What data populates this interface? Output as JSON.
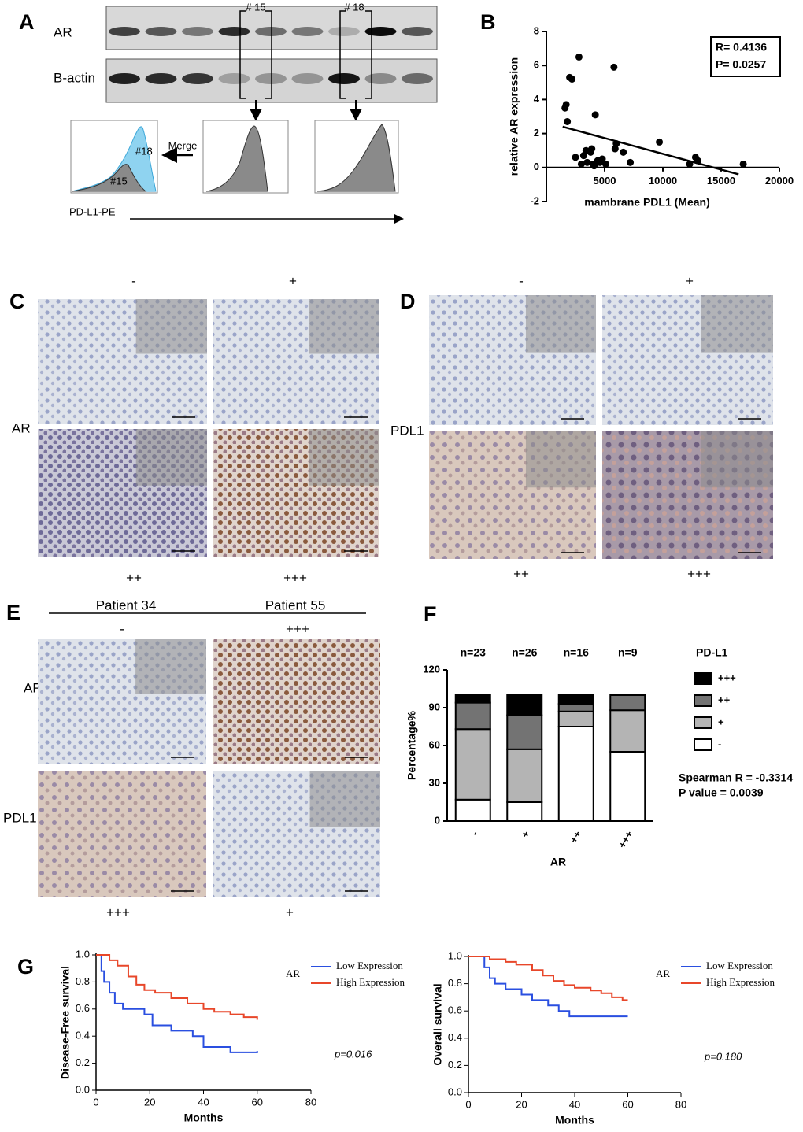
{
  "panels": {
    "A": {
      "letter": "A",
      "labels": [
        "AR",
        "B-actin"
      ],
      "lanes": [
        "# 15",
        "# 18"
      ],
      "merge": "Merge",
      "gates": [
        "#18",
        "#15"
      ],
      "axis": "PD-L1-PE"
    },
    "C": {
      "letter": "C",
      "columns": [
        "-",
        "+"
      ],
      "row": "AR",
      "bottom": [
        "++",
        "+++"
      ]
    },
    "D": {
      "letter": "D",
      "columns": [
        "-",
        "+"
      ],
      "row": "PDL1",
      "bottom": [
        "++",
        "+++"
      ]
    },
    "E": {
      "letter": "E",
      "patients": [
        "Patient 34",
        "Patient 55"
      ],
      "top": [
        "-",
        "+++"
      ],
      "rows": [
        "AR",
        "PDL1"
      ],
      "bottom": [
        "+++",
        "+"
      ]
    }
  },
  "chart_data": [
    {
      "type": "scatter",
      "letter": "B",
      "color": "#000000",
      "x": [
        1600,
        1700,
        1800,
        2000,
        2200,
        2500,
        2800,
        3000,
        3200,
        3400,
        3500,
        3800,
        3900,
        4000,
        4100,
        4200,
        4400,
        4600,
        4800,
        5100,
        5800,
        5900,
        6000,
        6600,
        7200,
        9700,
        12300,
        12800,
        13000,
        16900
      ],
      "values": [
        3.5,
        3.7,
        2.7,
        5.3,
        5.2,
        0.6,
        6.5,
        0.2,
        0.7,
        1.0,
        0.3,
        0.9,
        1.1,
        0.2,
        0.1,
        3.1,
        0.4,
        0.3,
        0.5,
        0.2,
        5.9,
        1.1,
        1.4,
        0.9,
        0.3,
        1.5,
        0.2,
        0.6,
        0.4,
        0.2
      ],
      "trend": {
        "x": [
          1400,
          16500
        ],
        "values": [
          2.4,
          -0.4
        ]
      },
      "xlabel": "mambrane PDL1 (Mean)",
      "ylabel": "relative AR expression",
      "xlim": [
        0,
        20000
      ],
      "ylim": [
        -2,
        8
      ],
      "xticks": [
        5000,
        10000,
        15000,
        20000
      ],
      "yticks": [
        -2,
        0,
        2,
        4,
        6,
        8
      ],
      "annotations": [
        "R= 0.4136",
        "P= 0.0257"
      ]
    },
    {
      "type": "bar",
      "stacked": true,
      "letter": "F",
      "categories": [
        "-",
        "+",
        "++",
        "+++"
      ],
      "series": [
        {
          "name": "-",
          "color": "#ffffff",
          "values": [
            17,
            15,
            75,
            55
          ]
        },
        {
          "name": "+",
          "color": "#b4b4b4",
          "values": [
            56,
            42,
            12,
            33
          ]
        },
        {
          "name": "++",
          "color": "#737373",
          "values": [
            21,
            27,
            6,
            12
          ]
        },
        {
          "name": "+++",
          "color": "#000000",
          "values": [
            6,
            16,
            7,
            0
          ]
        }
      ],
      "counts": [
        "n=23",
        "n=26",
        "n=16",
        "n=9"
      ],
      "legend_title": "PD-L1",
      "ylabel": "Percentage%",
      "xlabel": "AR",
      "ylim": [
        0,
        120
      ],
      "yticks": [
        0,
        30,
        60,
        90,
        120
      ],
      "annotations": [
        "Spearman R = -0.3314",
        "P value = 0.0039"
      ]
    },
    {
      "type": "line",
      "letter": "G",
      "legend_title": "AR",
      "series": [
        {
          "name": "Low Expression",
          "color": "#2a4fe0",
          "x": [
            0,
            2,
            2,
            3,
            3,
            5,
            5,
            7,
            7,
            10,
            10,
            18,
            18,
            21,
            21,
            28,
            28,
            36,
            36,
            40,
            40,
            50,
            50,
            60,
            60
          ],
          "values": [
            1,
            1,
            0.88,
            0.88,
            0.8,
            0.8,
            0.72,
            0.72,
            0.64,
            0.64,
            0.6,
            0.6,
            0.56,
            0.56,
            0.48,
            0.48,
            0.44,
            0.44,
            0.4,
            0.4,
            0.32,
            0.32,
            0.28,
            0.28,
            0.29
          ]
        },
        {
          "name": "High Expression",
          "color": "#e8472a",
          "x": [
            0,
            5,
            5,
            8,
            8,
            12,
            12,
            15,
            15,
            18,
            18,
            22,
            22,
            28,
            28,
            34,
            34,
            40,
            40,
            44,
            44,
            50,
            50,
            55,
            55,
            60,
            60
          ],
          "values": [
            1,
            1,
            0.96,
            0.96,
            0.92,
            0.92,
            0.84,
            0.84,
            0.78,
            0.78,
            0.74,
            0.74,
            0.72,
            0.72,
            0.68,
            0.68,
            0.64,
            0.64,
            0.6,
            0.6,
            0.58,
            0.58,
            0.56,
            0.56,
            0.54,
            0.54,
            0.52
          ]
        }
      ],
      "xlabel": "Months",
      "ylabel": "Disease-Free survival",
      "xlim": [
        0,
        80
      ],
      "ylim": [
        0,
        1
      ],
      "xticks": [
        0,
        20,
        40,
        60,
        80
      ],
      "yticks": [
        {
          "value": 0,
          "label": "0.0"
        },
        0.2,
        0.4,
        0.6,
        0.8,
        {
          "value": 1,
          "label": "1.0"
        }
      ],
      "annotations": [
        "p=0.016"
      ]
    },
    {
      "type": "line",
      "legend_title": "AR",
      "series": [
        {
          "name": "Low Expression",
          "color": "#2a4fe0",
          "x": [
            0,
            6,
            6,
            8,
            8,
            10,
            10,
            14,
            14,
            20,
            20,
            24,
            24,
            30,
            30,
            34,
            34,
            38,
            38,
            60
          ],
          "values": [
            1,
            1,
            0.92,
            0.92,
            0.84,
            0.84,
            0.8,
            0.8,
            0.76,
            0.76,
            0.72,
            0.72,
            0.68,
            0.68,
            0.64,
            0.64,
            0.6,
            0.6,
            0.56,
            0.56
          ]
        },
        {
          "name": "High Expression",
          "color": "#e8472a",
          "x": [
            0,
            8,
            8,
            14,
            14,
            18,
            18,
            24,
            24,
            28,
            28,
            32,
            32,
            36,
            36,
            40,
            40,
            46,
            46,
            50,
            50,
            54,
            54,
            58,
            58,
            60
          ],
          "values": [
            1,
            1,
            0.98,
            0.98,
            0.96,
            0.96,
            0.94,
            0.94,
            0.9,
            0.9,
            0.86,
            0.86,
            0.82,
            0.82,
            0.79,
            0.79,
            0.77,
            0.77,
            0.75,
            0.75,
            0.73,
            0.73,
            0.7,
            0.7,
            0.68,
            0.68
          ]
        }
      ],
      "xlabel": "Months",
      "ylabel": "Overall survival",
      "xlim": [
        0,
        80
      ],
      "ylim": [
        0,
        1
      ],
      "xticks": [
        0,
        20,
        40,
        60,
        80
      ],
      "yticks": [
        {
          "value": 0,
          "label": "0.0"
        },
        0.2,
        0.4,
        0.6,
        0.8,
        {
          "value": 1,
          "label": "1.0"
        }
      ],
      "annotations": [
        "p=0.180"
      ]
    }
  ]
}
